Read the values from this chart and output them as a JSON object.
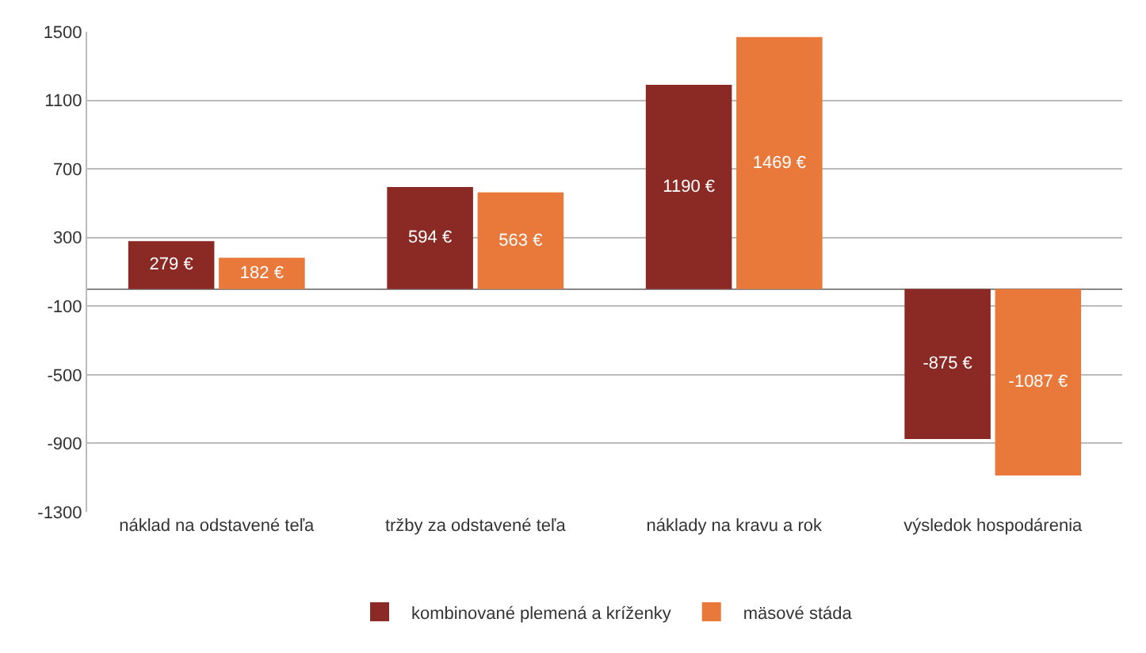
{
  "chart_data": {
    "type": "bar",
    "categories": [
      "náklad na odstavené teľa",
      "tržby za odstavené teľa",
      "náklady na kravu a rok",
      "výsledok hospodárenia"
    ],
    "series": [
      {
        "name": "kombinované plemená a kríženky",
        "color": "#8b2a24",
        "values": [
          279,
          594,
          1190,
          -875
        ],
        "value_labels": [
          "279 €",
          "594 €",
          "1190 €",
          "-875 €"
        ]
      },
      {
        "name": "mäsové stáda",
        "color": "#e8793a",
        "values": [
          182,
          563,
          1469,
          -1087
        ],
        "value_labels": [
          "182 €",
          "563 €",
          "1469 €",
          "-1087 €"
        ]
      }
    ],
    "ylim": [
      -1300,
      1500
    ],
    "yticks": [
      -1300,
      -900,
      -500,
      -100,
      300,
      700,
      1100,
      1500
    ],
    "grid": "y",
    "legend": "bottom"
  }
}
